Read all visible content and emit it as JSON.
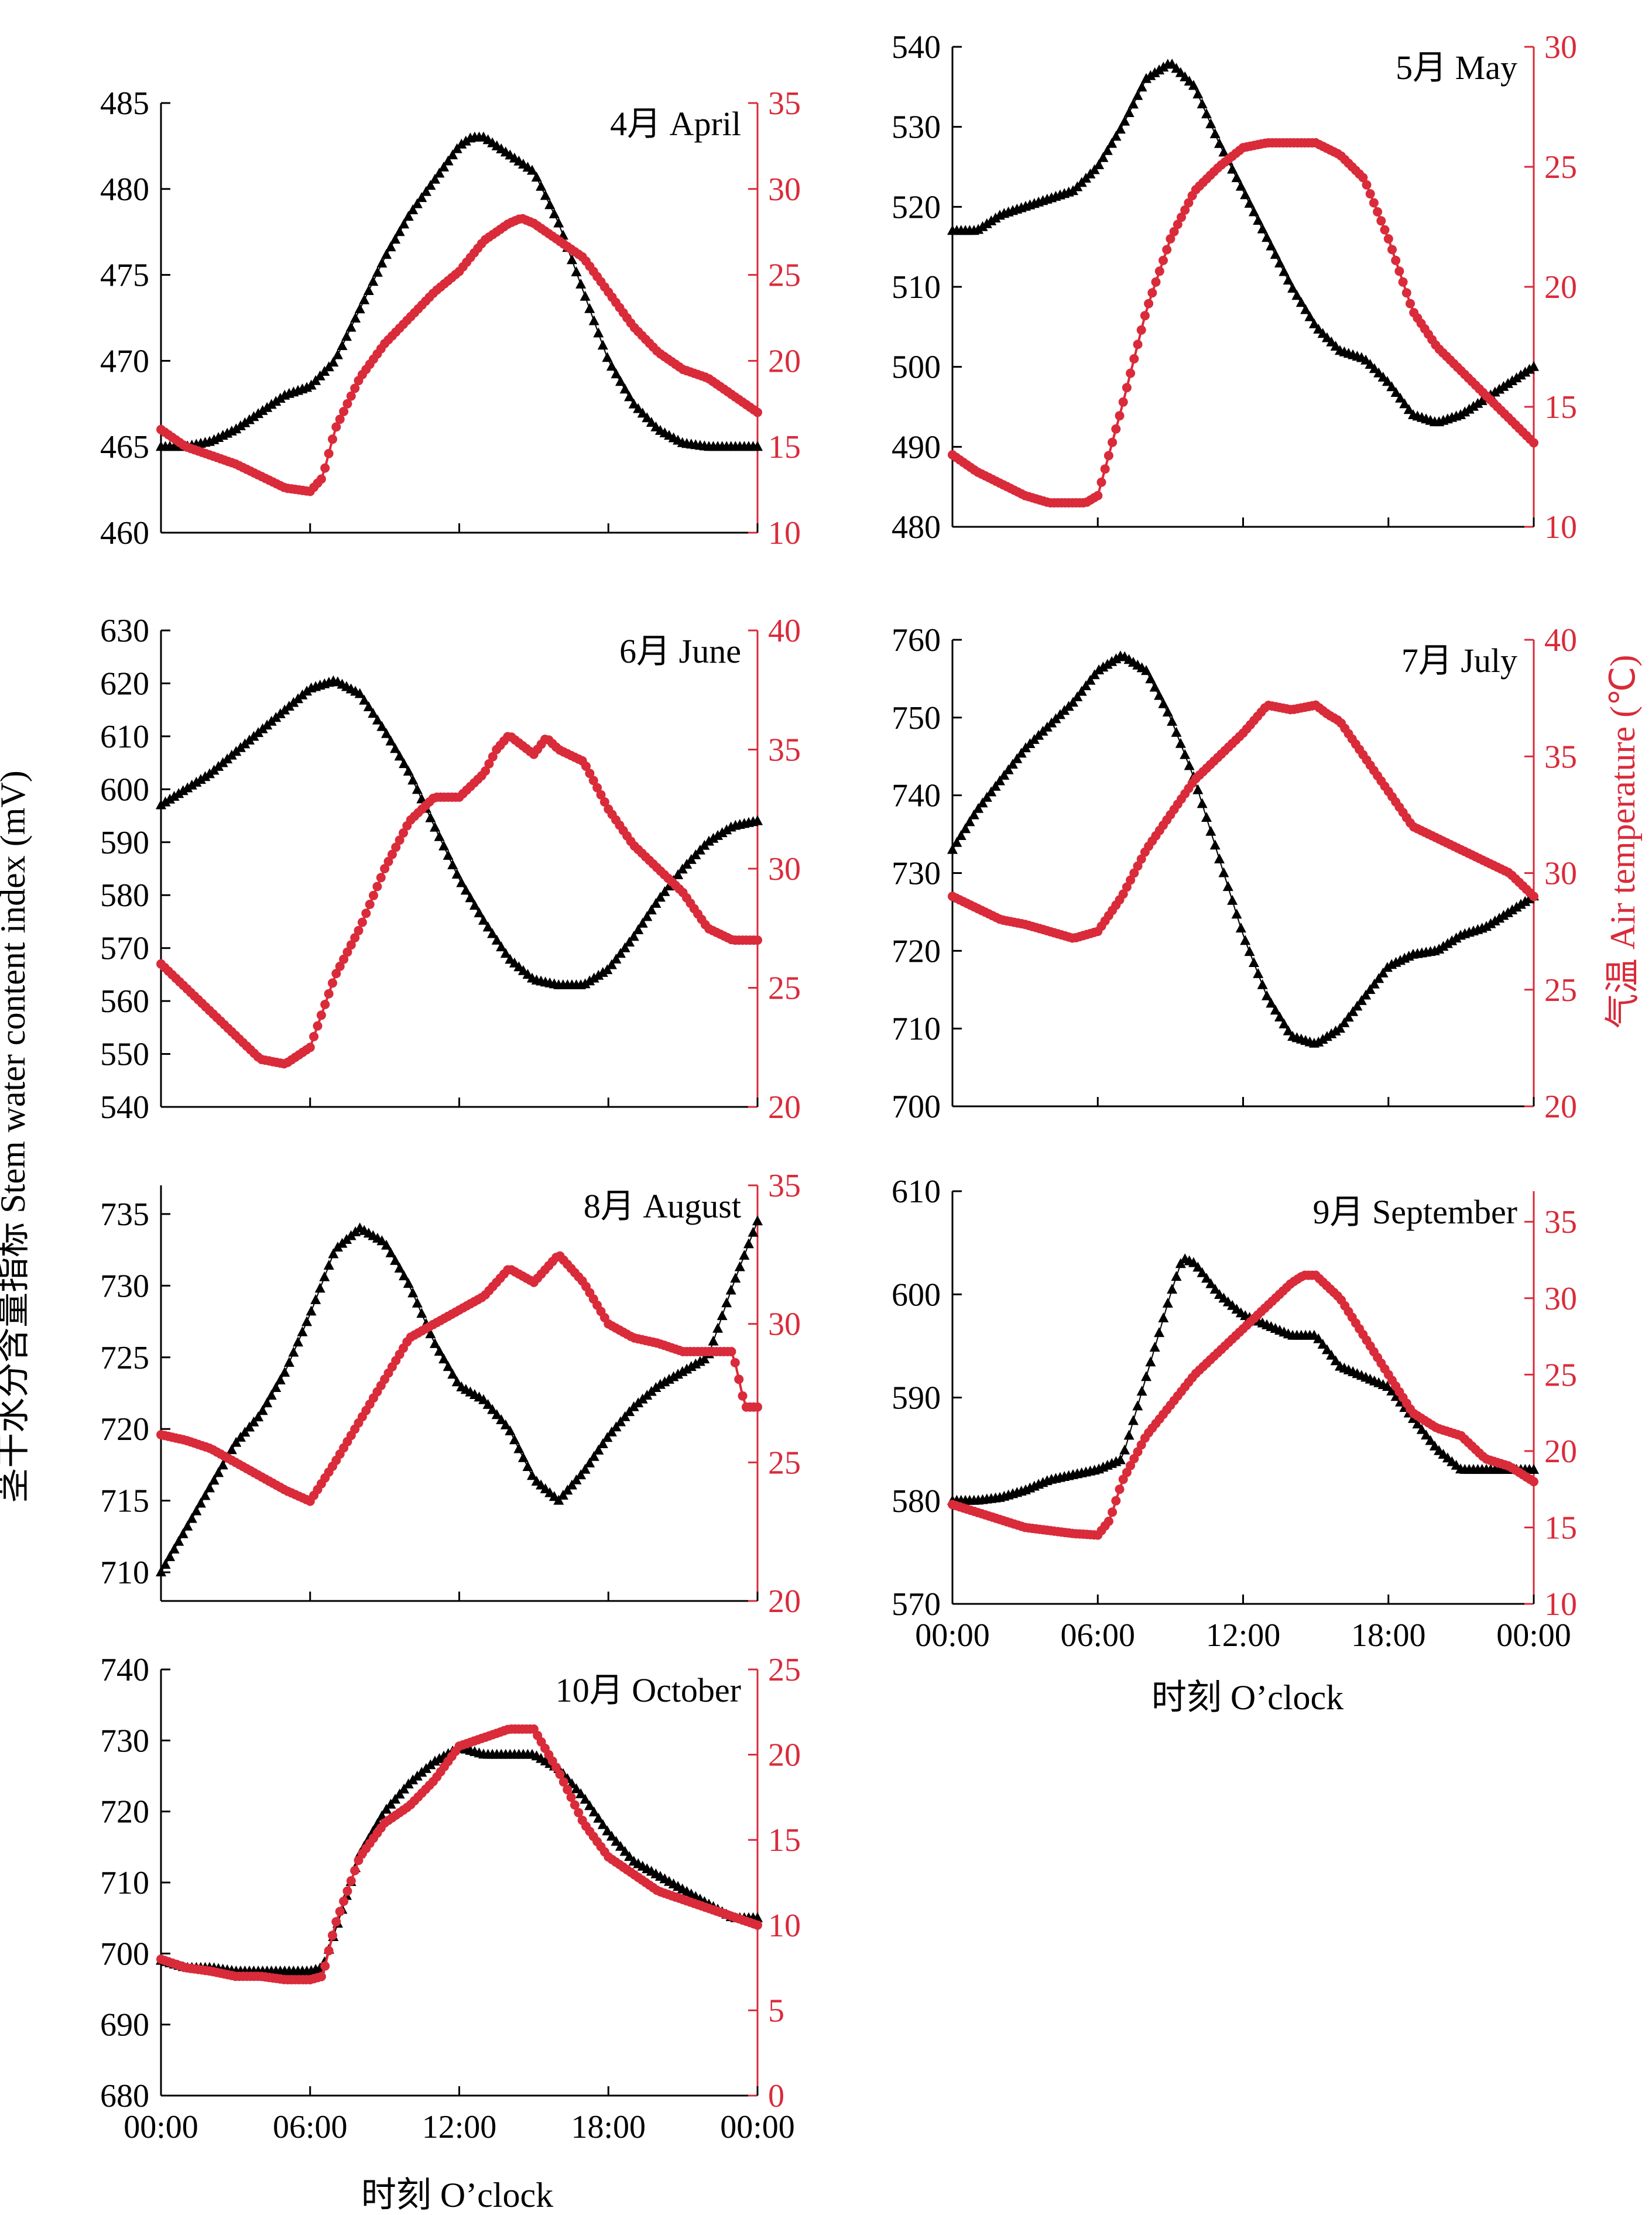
{
  "figure": {
    "left_axis_label": "茎干水分含量指标 Stem water content index (mV)",
    "right_axis_label": "气温 Air temperature (℃)",
    "x_axis_label": "时刻 O’clock",
    "colors": {
      "stem": "#000000",
      "temp": "#d92b3a"
    }
  },
  "chart_data": [
    {
      "type": "line",
      "title": "4月 April",
      "x_ticks": [
        "00:00",
        "06:00",
        "12:00",
        "18:00",
        "00:00"
      ],
      "ylim_left": [
        460,
        485
      ],
      "yticks_left": [
        460,
        465,
        470,
        475,
        480,
        485
      ],
      "ylim_right": [
        10,
        35
      ],
      "yticks_right": [
        10,
        15,
        20,
        25,
        30,
        35
      ],
      "series": [
        {
          "name": "Stem water content index",
          "axis": "left",
          "marker": "triangle",
          "x": [
            0,
            1,
            2,
            3,
            4,
            5,
            6,
            7,
            8,
            9,
            10,
            11,
            12,
            12.5,
            13,
            13.5,
            14,
            15,
            16,
            16.5,
            17,
            18,
            19,
            20,
            21,
            22,
            23,
            24
          ],
          "y": [
            465,
            465,
            465.3,
            466,
            467,
            468,
            468.5,
            470,
            473,
            476,
            478.5,
            480.5,
            482.5,
            483,
            483,
            482.5,
            482,
            481,
            478,
            476,
            474,
            470,
            467.5,
            466,
            465.2,
            465,
            465,
            465
          ]
        },
        {
          "name": "Air temperature",
          "axis": "right",
          "marker": "circle",
          "x": [
            0,
            1,
            2,
            3,
            4,
            5,
            6,
            6.5,
            7,
            8,
            9,
            10,
            11,
            12,
            13,
            14,
            14.5,
            15,
            16,
            17,
            18,
            19,
            20,
            21,
            22,
            23,
            24
          ],
          "y": [
            16,
            15,
            14.5,
            14,
            13.3,
            12.6,
            12.4,
            13.2,
            16,
            19,
            21,
            22.5,
            24,
            25.2,
            27,
            28,
            28.3,
            28,
            27,
            26,
            24,
            22,
            20.5,
            19.5,
            19,
            18,
            17
          ]
        }
      ]
    },
    {
      "type": "line",
      "title": "5月 May",
      "x_ticks": [
        "00:00",
        "06:00",
        "12:00",
        "18:00",
        "00:00"
      ],
      "ylim_left": [
        480,
        540
      ],
      "yticks_left": [
        480,
        490,
        500,
        510,
        520,
        530,
        540
      ],
      "ylim_right": [
        10,
        30
      ],
      "yticks_right": [
        10,
        15,
        20,
        25,
        30
      ],
      "series": [
        {
          "name": "Stem water content index",
          "axis": "left",
          "marker": "triangle",
          "x": [
            0,
            1,
            2,
            3,
            4,
            5,
            6,
            7,
            8,
            9,
            10,
            11,
            12,
            13,
            14,
            15,
            16,
            17,
            18,
            19,
            20,
            21,
            22,
            23,
            24
          ],
          "y": [
            517,
            517,
            519,
            520,
            521,
            522,
            525,
            530,
            536,
            538,
            535,
            528,
            522,
            516,
            510,
            505,
            502,
            501,
            498,
            494,
            493,
            494,
            496,
            498,
            500
          ]
        },
        {
          "name": "Air temperature",
          "axis": "right",
          "marker": "circle",
          "x": [
            0,
            1,
            2,
            3,
            4,
            5,
            5.5,
            6,
            7,
            8,
            9,
            10,
            11,
            12,
            13,
            14,
            15,
            16,
            17,
            18,
            19,
            20,
            21,
            22,
            23,
            24
          ],
          "y": [
            13,
            12.3,
            11.8,
            11.3,
            11,
            11,
            11,
            11.3,
            15,
            19,
            22,
            24,
            25,
            25.8,
            26,
            26,
            26,
            25.5,
            24.5,
            22,
            19,
            17.5,
            16.5,
            15.5,
            14.5,
            13.5
          ]
        }
      ]
    },
    {
      "type": "line",
      "title": "6月 June",
      "x_ticks": [
        "00:00",
        "06:00",
        "12:00",
        "18:00",
        "00:00"
      ],
      "ylim_left": [
        540,
        630
      ],
      "yticks_left": [
        540,
        550,
        560,
        570,
        580,
        590,
        600,
        610,
        620,
        630
      ],
      "ylim_right": [
        20,
        40
      ],
      "yticks_right": [
        20,
        25,
        30,
        35,
        40
      ],
      "series": [
        {
          "name": "Stem water content index",
          "axis": "left",
          "marker": "triangle",
          "x": [
            0,
            1,
            2,
            3,
            4,
            5,
            6,
            7,
            8,
            9,
            10,
            11,
            12,
            13,
            14,
            15,
            16,
            17,
            18,
            19,
            20,
            21,
            22,
            23,
            24
          ],
          "y": [
            597,
            600,
            603,
            607,
            611,
            615,
            619,
            620.5,
            618,
            611,
            603,
            593,
            583,
            575,
            568,
            564,
            563,
            563,
            566,
            572,
            579,
            585,
            590,
            593,
            594
          ]
        },
        {
          "name": "Air temperature",
          "axis": "right",
          "marker": "circle",
          "x": [
            0,
            1,
            2,
            3,
            4,
            5,
            6,
            7,
            8,
            9,
            10,
            11,
            12,
            13,
            13.5,
            14,
            15,
            15.5,
            16,
            17,
            18,
            19,
            20,
            21,
            22,
            23,
            24
          ],
          "y": [
            26,
            25,
            24,
            23,
            22,
            21.8,
            22.5,
            25.5,
            27.5,
            30,
            32,
            33,
            33,
            34,
            35,
            35.6,
            34.8,
            35.5,
            35,
            34.5,
            32.5,
            31,
            30,
            29,
            27.5,
            27,
            27
          ]
        }
      ]
    },
    {
      "type": "line",
      "title": "7月 July",
      "x_ticks": [
        "00:00",
        "06:00",
        "12:00",
        "18:00",
        "00:00"
      ],
      "ylim_left": [
        700,
        760
      ],
      "yticks_left": [
        700,
        710,
        720,
        730,
        740,
        750,
        760
      ],
      "ylim_right": [
        20,
        40
      ],
      "yticks_right": [
        20,
        25,
        30,
        35,
        40
      ],
      "series": [
        {
          "name": "Stem water content index",
          "axis": "left",
          "marker": "triangle",
          "x": [
            0,
            1,
            2,
            3,
            4,
            5,
            6,
            7,
            8,
            9,
            10,
            11,
            12,
            13,
            14,
            15,
            16,
            17,
            18,
            19,
            20,
            21,
            22,
            23,
            24
          ],
          "y": [
            733,
            738,
            742,
            746,
            749,
            752,
            756,
            758,
            756,
            750,
            742,
            732,
            722,
            714,
            709,
            708,
            710,
            714,
            718,
            719.5,
            720,
            722,
            723,
            725,
            727
          ]
        },
        {
          "name": "Air temperature",
          "axis": "right",
          "marker": "circle",
          "x": [
            0,
            1,
            2,
            3,
            4,
            5,
            6,
            7,
            8,
            9,
            10,
            11,
            12,
            13,
            14,
            15,
            15.5,
            16,
            17,
            18,
            19,
            20,
            21,
            22,
            23,
            24
          ],
          "y": [
            29,
            28.5,
            28,
            27.8,
            27.5,
            27.2,
            27.5,
            29,
            31,
            32.5,
            34,
            35,
            36,
            37.2,
            37,
            37.2,
            36.8,
            36.5,
            35,
            33.5,
            32,
            31.5,
            31,
            30.5,
            30,
            29
          ]
        }
      ]
    },
    {
      "type": "line",
      "title": "8月 August",
      "x_ticks": [
        "00:00",
        "06:00",
        "12:00",
        "18:00",
        "00:00"
      ],
      "ylim_left": [
        708,
        737
      ],
      "yticks_left": [
        710,
        715,
        720,
        725,
        730,
        735
      ],
      "ylim_right": [
        20,
        35
      ],
      "yticks_right": [
        20,
        25,
        30,
        35
      ],
      "series": [
        {
          "name": "Stem water content index",
          "axis": "left",
          "marker": "triangle",
          "x": [
            0,
            1,
            2,
            3,
            4,
            5,
            6,
            7,
            8,
            9,
            10,
            11,
            12,
            13,
            14,
            15,
            16,
            17,
            18,
            19,
            20,
            21,
            22,
            23,
            24
          ],
          "y": [
            710,
            713,
            716,
            719,
            721,
            724,
            728,
            732.5,
            734,
            733,
            730,
            726,
            723,
            722,
            720,
            716.5,
            715,
            717,
            719.5,
            721.5,
            723,
            724,
            725,
            730,
            734.5
          ]
        },
        {
          "name": "Air temperature",
          "axis": "right",
          "marker": "circle",
          "x": [
            0,
            1,
            2,
            3,
            4,
            5,
            6,
            7,
            8,
            9,
            10,
            11,
            12,
            13,
            14,
            15,
            16,
            17,
            18,
            19,
            20,
            21,
            22,
            23,
            23.5,
            24
          ],
          "y": [
            26,
            25.8,
            25.5,
            25,
            24.5,
            24,
            23.6,
            25,
            26.5,
            28,
            29.5,
            30,
            30.5,
            31,
            32,
            31.5,
            32.5,
            31.5,
            30,
            29.5,
            29.3,
            29,
            29,
            29,
            27,
            27
          ]
        }
      ]
    },
    {
      "type": "line",
      "title": "9月 September",
      "x_ticks": [
        "00:00",
        "06:00",
        "12:00",
        "18:00",
        "00:00"
      ],
      "ylim_left": [
        570,
        610
      ],
      "yticks_left": [
        570,
        580,
        590,
        600,
        610
      ],
      "ylim_right": [
        10,
        37
      ],
      "yticks_right": [
        10,
        15,
        20,
        25,
        30,
        35
      ],
      "series": [
        {
          "name": "Stem water content index",
          "axis": "left",
          "marker": "triangle",
          "x": [
            0,
            1,
            2,
            3,
            4,
            5,
            6,
            7,
            8,
            9,
            9.5,
            10,
            11,
            12,
            13,
            14,
            15,
            16,
            17,
            18,
            19,
            20,
            21,
            22,
            23,
            24
          ],
          "y": [
            580,
            580,
            580.3,
            581,
            582,
            582.5,
            583,
            584,
            592,
            600,
            603.5,
            603,
            600,
            598,
            597,
            596,
            596,
            593,
            592,
            591,
            588,
            585,
            583,
            583,
            583,
            583
          ]
        },
        {
          "name": "Air temperature",
          "axis": "right",
          "marker": "circle",
          "x": [
            0,
            1,
            2,
            3,
            4,
            5,
            6,
            6.5,
            7,
            8,
            9,
            10,
            11,
            12,
            13,
            14,
            14.5,
            15,
            16,
            17,
            18,
            19,
            20,
            21,
            22,
            23,
            24
          ],
          "y": [
            16.5,
            16,
            15.5,
            15,
            14.8,
            14.6,
            14.5,
            15.5,
            18,
            21,
            23,
            25,
            26.5,
            28,
            29.5,
            31,
            31.5,
            31.5,
            30,
            27.5,
            25,
            22.5,
            21.5,
            21,
            19.5,
            19,
            18
          ]
        }
      ]
    },
    {
      "type": "line",
      "title": "10月 October",
      "x_ticks": [
        "00:00",
        "06:00",
        "12:00",
        "18:00",
        "00:00"
      ],
      "ylim_left": [
        680,
        740
      ],
      "yticks_left": [
        680,
        690,
        700,
        710,
        720,
        730,
        740
      ],
      "ylim_right": [
        0,
        25
      ],
      "yticks_right": [
        0,
        5,
        10,
        15,
        20,
        25
      ],
      "series": [
        {
          "name": "Stem water content index",
          "axis": "left",
          "marker": "triangle",
          "x": [
            0,
            1,
            2,
            3,
            4,
            5,
            6,
            6.5,
            7,
            8,
            9,
            10,
            11,
            12,
            13,
            14,
            15,
            16,
            17,
            18,
            19,
            20,
            21,
            22,
            23,
            24
          ],
          "y": [
            699,
            698,
            698,
            697.5,
            697.5,
            697.5,
            697.5,
            698,
            703,
            714,
            720,
            724,
            727,
            729,
            728,
            728,
            728,
            726,
            722,
            717,
            713,
            711,
            709,
            707,
            705,
            705
          ]
        },
        {
          "name": "Air temperature",
          "axis": "right",
          "marker": "circle",
          "x": [
            0,
            1,
            2,
            3,
            4,
            5,
            6,
            6.5,
            7,
            8,
            9,
            10,
            11,
            12,
            13,
            14,
            15,
            16,
            17,
            18,
            19,
            20,
            21,
            22,
            23,
            24
          ],
          "y": [
            8,
            7.5,
            7.3,
            7,
            7,
            6.8,
            6.8,
            7,
            10,
            14,
            16,
            17,
            18.5,
            20.5,
            21,
            21.5,
            21.5,
            19,
            16,
            14,
            13,
            12,
            11.5,
            11,
            10.5,
            10
          ]
        }
      ]
    }
  ]
}
